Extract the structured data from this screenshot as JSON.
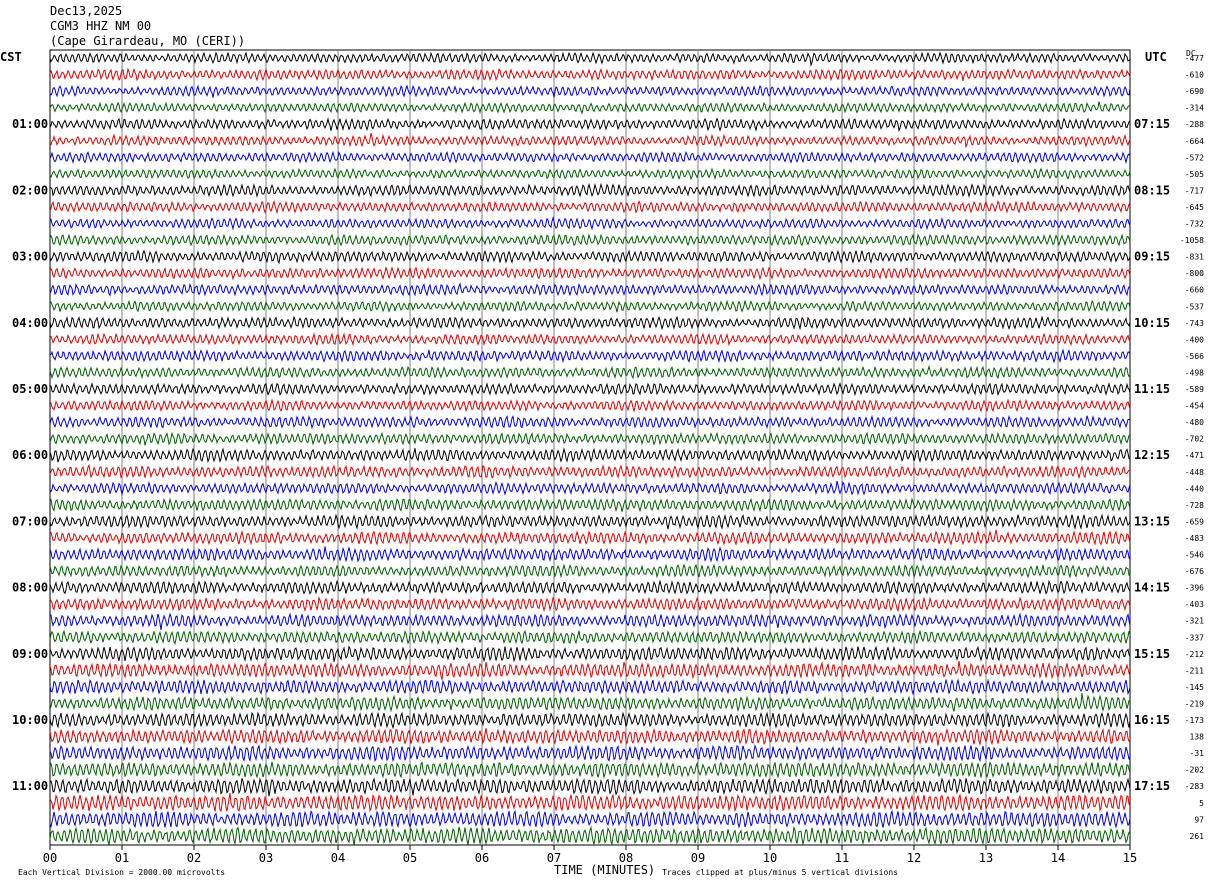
{
  "header": {
    "date": "Dec13,2025",
    "station": "CGM3 HHZ NM 00",
    "location": "(Cape Girardeau, MO (CERI))"
  },
  "left_axis_label": "CST",
  "right_axis_label": "UTC",
  "dc_label": "DC",
  "footer": {
    "scale_note": "Each Vertical Division = 2000.00 microvolts",
    "x_label": "TIME (MINUTES)",
    "clip_note": "Traces clipped at plus/minus 5 vertical divisions"
  },
  "colors": {
    "cycle": [
      "#000000",
      "#e00000",
      "#0000e0",
      "#006000"
    ],
    "grid": "#808080"
  },
  "chart_data": {
    "type": "line",
    "description_kind": "helicorder seismogram",
    "x_ticks": [
      "00",
      "01",
      "02",
      "03",
      "04",
      "05",
      "06",
      "07",
      "08",
      "09",
      "10",
      "11",
      "12",
      "13",
      "14",
      "15"
    ],
    "xlim": [
      0,
      15
    ],
    "left_hour_labels": [
      "01:00",
      "02:00",
      "03:00",
      "04:00",
      "05:00",
      "06:00",
      "07:00",
      "08:00",
      "09:00",
      "10:00",
      "11:00"
    ],
    "right_hour_labels": [
      "07:15",
      "08:15",
      "09:15",
      "10:15",
      "11:15",
      "12:15",
      "13:15",
      "14:15",
      "15:15",
      "16:15",
      "17:15"
    ],
    "trace_count": 48,
    "dc_offsets": [
      "-477",
      "-610",
      "-690",
      "-314",
      "-288",
      "-664",
      "-572",
      "-505",
      "-717",
      "-645",
      "-732",
      "-1058",
      "-831",
      "-800",
      "-660",
      "-537",
      "-743",
      "-400",
      "-566",
      "-498",
      "-589",
      "-454",
      "-480",
      "-702",
      "-471",
      "-448",
      "-440",
      "-728",
      "-659",
      "-483",
      "-546",
      "-676",
      "-396",
      "-403",
      "-321",
      "-337",
      "-212",
      "-211",
      "-145",
      "-219",
      "-173",
      "138",
      "-31",
      "-202",
      "-283",
      "5",
      "97",
      "261"
    ],
    "relative_amplitude_by_row": [
      0.8,
      0.85,
      0.8,
      0.75,
      0.85,
      0.8,
      0.8,
      0.75,
      0.9,
      0.85,
      0.8,
      0.85,
      0.9,
      0.85,
      0.85,
      0.8,
      0.9,
      0.85,
      0.9,
      0.85,
      0.9,
      0.85,
      0.9,
      0.9,
      0.95,
      0.95,
      0.9,
      0.95,
      1.0,
      1.0,
      1.0,
      0.95,
      1.0,
      1.0,
      1.05,
      1.0,
      1.1,
      1.15,
      1.15,
      1.1,
      1.15,
      1.2,
      1.2,
      1.25,
      1.25,
      1.35,
      1.3,
      1.35
    ]
  }
}
